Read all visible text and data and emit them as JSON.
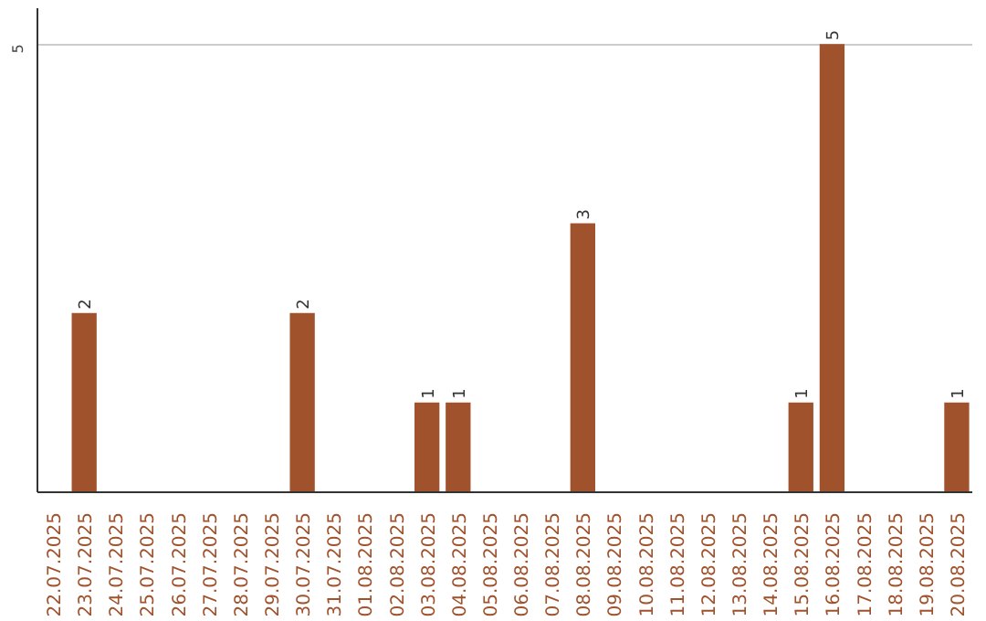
{
  "chart_data": {
    "type": "bar",
    "categories": [
      "22.07.2025",
      "23.07.2025",
      "24.07.2025",
      "25.07.2025",
      "26.07.2025",
      "27.07.2025",
      "28.07.2025",
      "29.07.2025",
      "30.07.2025",
      "31.07.2025",
      "01.08.2025",
      "02.08.2025",
      "03.08.2025",
      "04.08.2025",
      "05.08.2025",
      "06.08.2025",
      "07.08.2025",
      "08.08.2025",
      "09.08.2025",
      "10.08.2025",
      "11.08.2025",
      "12.08.2025",
      "13.08.2025",
      "14.08.2025",
      "15.08.2025",
      "16.08.2025",
      "17.08.2025",
      "18.08.2025",
      "19.08.2025",
      "20.08.2025"
    ],
    "values": [
      0,
      2,
      0,
      0,
      0,
      0,
      0,
      0,
      2,
      0,
      0,
      0,
      1,
      1,
      0,
      0,
      0,
      3,
      0,
      0,
      0,
      0,
      0,
      0,
      1,
      5,
      0,
      0,
      0,
      1
    ],
    "color": "#a0522d",
    "value_labels": [
      null,
      "2",
      null,
      null,
      null,
      null,
      null,
      null,
      "2",
      null,
      null,
      null,
      "1",
      "1",
      null,
      null,
      null,
      "3",
      null,
      null,
      null,
      null,
      null,
      null,
      "1",
      "5",
      null,
      null,
      null,
      "1"
    ],
    "ylim": [
      0,
      5.4
    ],
    "yticks": [
      5
    ],
    "grid": "y"
  }
}
